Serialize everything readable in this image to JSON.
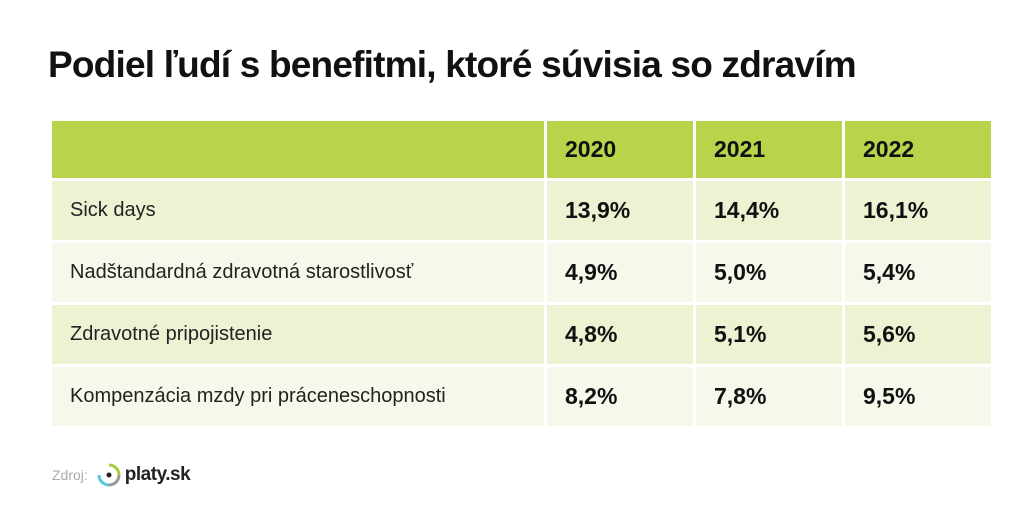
{
  "chart_data": {
    "type": "table",
    "title": "Podiel ľudí s benefitmi, ktoré súvisia so zdravím",
    "columns": [
      "2020",
      "2021",
      "2022"
    ],
    "rows": [
      {
        "label": "Sick days",
        "values": [
          "13,9%",
          "14,4%",
          "16,1%"
        ]
      },
      {
        "label": "Nadštandardná zdravotná starostlivosť",
        "values": [
          "4,9%",
          "5,0%",
          "5,4%"
        ]
      },
      {
        "label": "Zdravotné pripojistenie",
        "values": [
          "4,8%",
          "5,1%",
          "5,6%"
        ]
      },
      {
        "label": "Kompenzácia mzdy pri práceneschopnosti",
        "values": [
          "8,2%",
          "7,8%",
          "9,5%"
        ]
      }
    ]
  },
  "source": {
    "label": "Zdroj:",
    "logo_text": "platy.sk"
  },
  "colors": {
    "header": "#b8d44a",
    "row_a": "#ebf3d3",
    "row_b": "#f5f9eb"
  }
}
